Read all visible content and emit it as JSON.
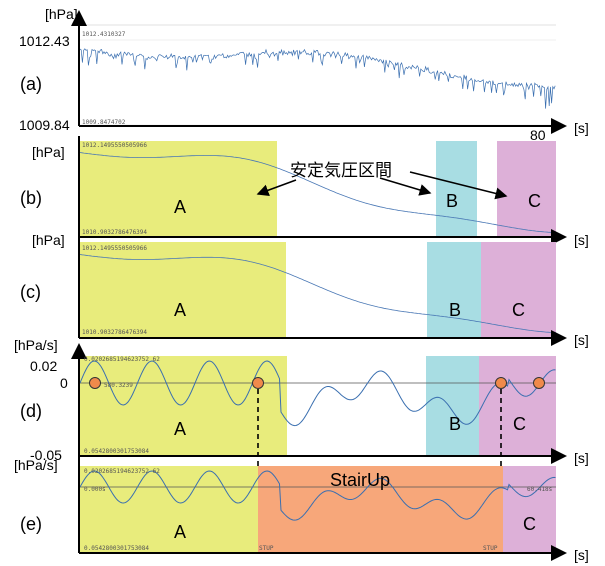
{
  "chart_data": [
    {
      "id": "a",
      "panel_label": "(a)",
      "type": "line",
      "ylabel": "[hPa]",
      "xlabel": "[s]",
      "y_ticks": [
        "1012.43",
        "1009.84"
      ],
      "x_ticks": [
        "80"
      ],
      "small_texts": [
        "1012.4310327",
        "1009.8474702"
      ],
      "series_color": "#3a6fb0"
    },
    {
      "id": "b",
      "panel_label": "(b)",
      "type": "line",
      "ylabel": "[hPa]",
      "xlabel": "[s]",
      "regions": [
        {
          "label": "A",
          "color": "#e8ec7c"
        },
        {
          "label": "B",
          "color": "#a8dde3"
        },
        {
          "label": "C",
          "color": "#ddb0d8"
        }
      ],
      "annotation": "安定気圧区間",
      "small_texts": [
        "1012.1495550505966",
        "1010.9032786476394"
      ],
      "series_color": "#3a6fb0"
    },
    {
      "id": "c",
      "panel_label": "(c)",
      "type": "line",
      "ylabel": "[hPa]",
      "xlabel": "[s]",
      "regions": [
        {
          "label": "A",
          "color": "#e8ec7c"
        },
        {
          "label": "B",
          "color": "#a8dde3"
        },
        {
          "label": "C",
          "color": "#ddb0d8"
        }
      ],
      "small_texts": [
        "1012.1495550505966",
        "1010.9032786476394"
      ],
      "series_color": "#3a6fb0"
    },
    {
      "id": "d",
      "panel_label": "(d)",
      "type": "line",
      "ylabel": "[hPa/s]",
      "xlabel": "[s]",
      "y_ticks": [
        "0.02",
        "0",
        "-0.05"
      ],
      "regions": [
        {
          "label": "A",
          "color": "#e8ec7c"
        },
        {
          "label": "B",
          "color": "#a8dde3"
        },
        {
          "label": "C",
          "color": "#ddb0d8"
        }
      ],
      "zero_crossing_color": "#f08a4b",
      "small_texts": [
        "0.0202685194623752 62",
        "580.3239",
        "0.0542800301753084"
      ],
      "series_color": "#3a6fb0"
    },
    {
      "id": "e",
      "panel_label": "(e)",
      "type": "line",
      "ylabel": "[hPa/s]",
      "xlabel": "[s]",
      "regions": [
        {
          "label": "A",
          "color": "#e8ec7c"
        },
        {
          "label": "StairUp",
          "color": "#f7a77a"
        },
        {
          "label": "C",
          "color": "#ddb0d8"
        }
      ],
      "small_texts": [
        "0.0202685194623752 62",
        "0.000s",
        "60.418s",
        "0.0542800301753084",
        "STUP",
        "STUP"
      ],
      "series_color": "#3a6fb0"
    }
  ]
}
